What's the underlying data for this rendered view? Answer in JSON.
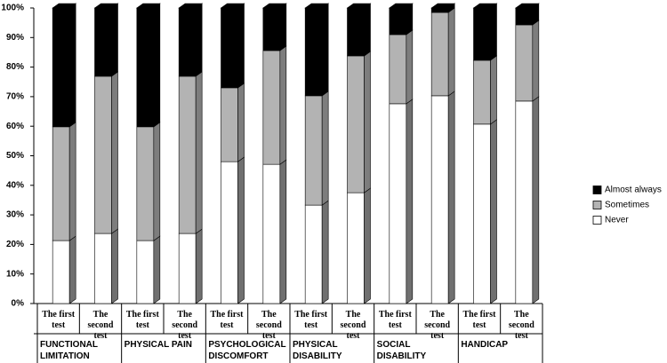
{
  "chart_data": {
    "type": "stacked_bar_3d",
    "categories": [
      "The first test",
      "The second test",
      "The first test",
      "The second test",
      "The first test",
      "The second test",
      "The first test",
      "The second test",
      "The first test",
      "The second test",
      "The first test",
      "The second test"
    ],
    "groups": [
      "FUNCTIONAL LIMITATION",
      "PHYSICAL PAIN",
      "PSYCHOLOGICAL DISCOMFORT",
      "PHYSICAL DISABILITY",
      "SOCIAL DISABILITY",
      "HANDICAP"
    ],
    "series": [
      {
        "name": "Never",
        "color": "#ffffff",
        "values": [
          21.3,
          23.7,
          21.3,
          23.7,
          48.0,
          47.1,
          33.3,
          37.5,
          67.6,
          70.3,
          60.7,
          68.5
        ]
      },
      {
        "name": "Sometimes",
        "color": "#b3b3b3",
        "values": [
          38.5,
          53.2,
          38.5,
          53.2,
          25.0,
          38.5,
          37.0,
          46.3,
          23.4,
          28.2,
          21.6,
          25.8
        ]
      },
      {
        "name": "Almost always",
        "color": "#000000",
        "values": [
          40.2,
          23.1,
          40.2,
          23.1,
          27.0,
          14.4,
          29.7,
          16.2,
          9.0,
          1.5,
          17.7,
          5.7
        ]
      }
    ],
    "ylim": [
      0,
      100
    ],
    "yticks": [
      {
        "value": 0,
        "label": "0%"
      },
      {
        "value": 10,
        "label": "10%"
      },
      {
        "value": 20,
        "label": "20%"
      },
      {
        "value": 30,
        "label": "30%"
      },
      {
        "value": 40,
        "label": "40%"
      },
      {
        "value": 50,
        "label": "50%"
      },
      {
        "value": 60,
        "label": "60%"
      },
      {
        "value": 70,
        "label": "70%"
      },
      {
        "value": 80,
        "label": "80%"
      },
      {
        "value": 90,
        "label": "90%"
      },
      {
        "value": 100,
        "label": "100%"
      }
    ],
    "legend": "right"
  }
}
